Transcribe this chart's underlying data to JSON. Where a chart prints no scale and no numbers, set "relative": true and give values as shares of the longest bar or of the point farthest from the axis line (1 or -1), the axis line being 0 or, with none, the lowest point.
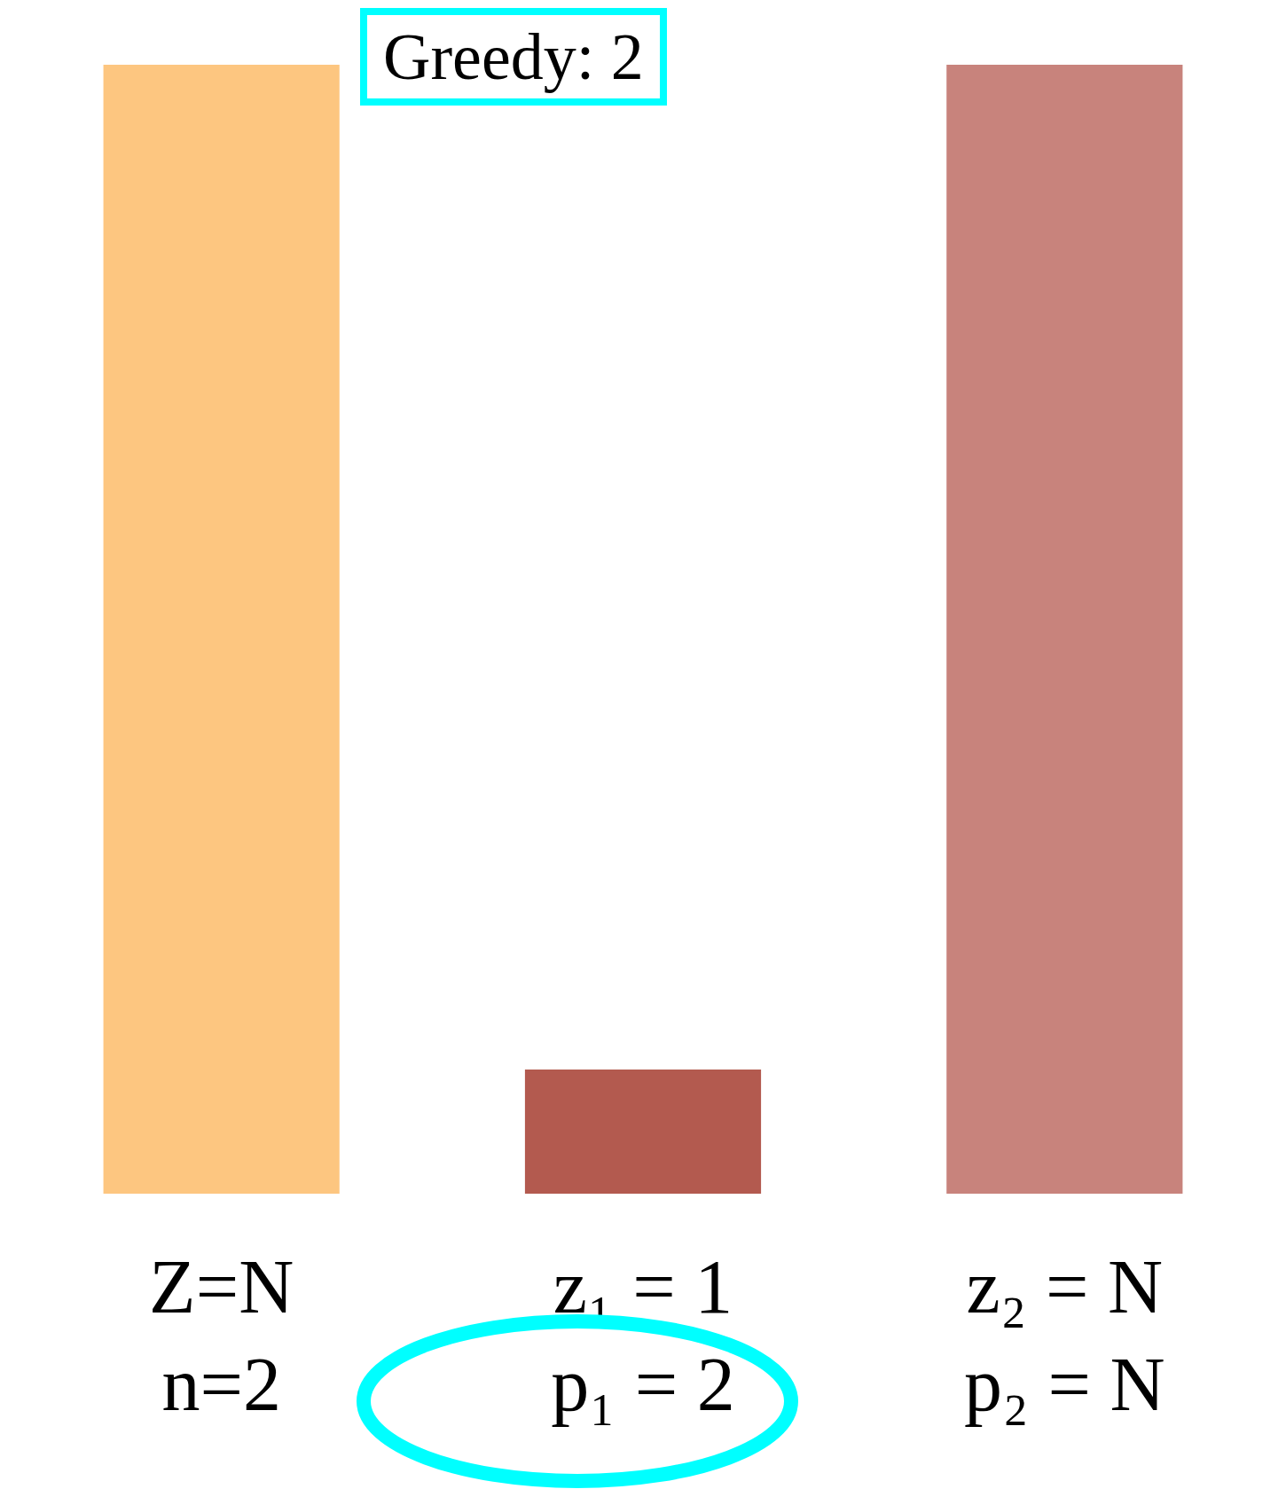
{
  "chart_data": {
    "type": "bar",
    "relative": true,
    "categories": [
      "Z=N\nn=2",
      "z₁ = 1\np₁ = 2",
      "z₂ = N\np₂ = N"
    ],
    "values": [
      1,
      0.11,
      1
    ],
    "colors": [
      "#fdc680",
      "#b35a4f",
      "#c8837c"
    ],
    "annotations": [
      "Greedy: 2"
    ]
  }
}
